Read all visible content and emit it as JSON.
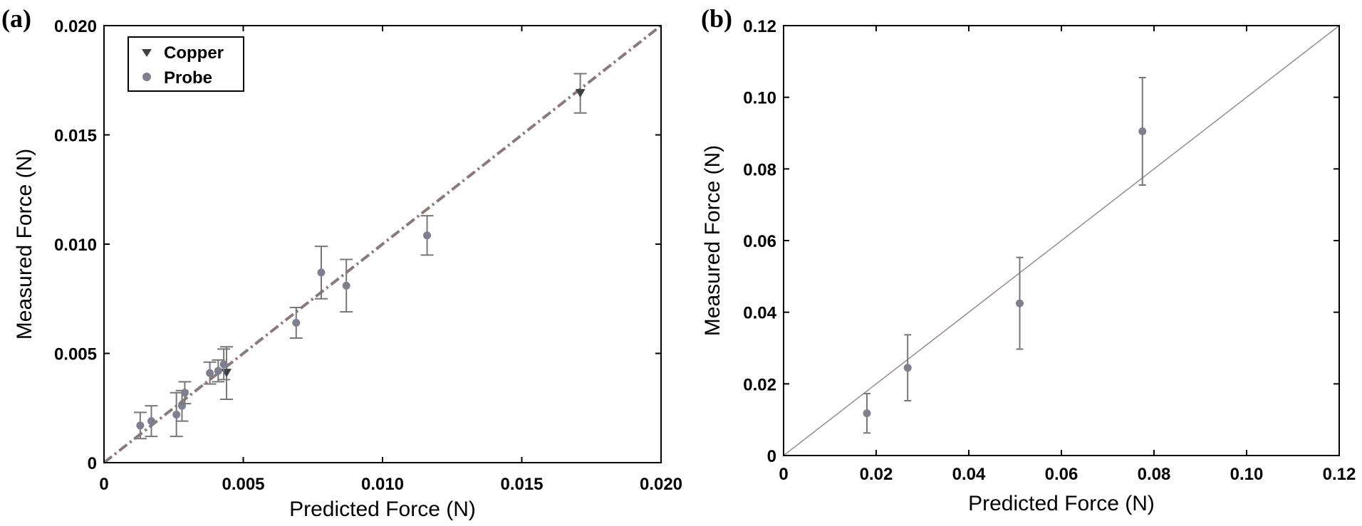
{
  "colors": {
    "probe": "#7e8090",
    "copper": "#3d4046",
    "fit_line_a": "#8c7a7a",
    "fit_line_b": "#9a8a8e",
    "error_bar": "#777777",
    "axis": "#000000"
  },
  "chart_data": [
    {
      "panel_label": "(a)",
      "type": "scatter",
      "title": "",
      "xlabel": "Predicted Force (N)",
      "ylabel": "Measured Force (N)",
      "xlim": [
        0,
        0.02
      ],
      "ylim": [
        0,
        0.02
      ],
      "xticks": [
        0,
        0.005,
        0.01,
        0.015,
        0.02
      ],
      "yticks": [
        0,
        0.005,
        0.01,
        0.015,
        0.02
      ],
      "xtick_labels": [
        "0",
        "0.005",
        "0.010",
        "0.015",
        "0.020"
      ],
      "ytick_labels": [
        "0",
        "0.005",
        "0.010",
        "0.015",
        "0.020"
      ],
      "grid": false,
      "legend": {
        "position": "top-left",
        "entries": [
          {
            "name": "Copper",
            "marker": "triangle-down"
          },
          {
            "name": "Probe",
            "marker": "circle"
          }
        ]
      },
      "reference_line": {
        "style": "dash-dot",
        "from": [
          0,
          0
        ],
        "to": [
          0.02,
          0.02
        ]
      },
      "series": [
        {
          "name": "Copper",
          "marker": "triangle-down",
          "points": [
            {
              "x": 0.0171,
              "y": 0.0169,
              "err_low": 0.0009,
              "err_high": 0.0009
            },
            {
              "x": 0.0044,
              "y": 0.0041,
              "err_low": 0.0012,
              "err_high": 0.0012
            }
          ]
        },
        {
          "name": "Probe",
          "marker": "circle",
          "points": [
            {
              "x": 0.0013,
              "y": 0.0017,
              "err_low": 0.0006,
              "err_high": 0.0006
            },
            {
              "x": 0.0017,
              "y": 0.0019,
              "err_low": 0.0007,
              "err_high": 0.0007
            },
            {
              "x": 0.0026,
              "y": 0.0022,
              "err_low": 0.001,
              "err_high": 0.001
            },
            {
              "x": 0.0028,
              "y": 0.0026,
              "err_low": 0.0007,
              "err_high": 0.0007
            },
            {
              "x": 0.0029,
              "y": 0.0032,
              "err_low": 0.0005,
              "err_high": 0.0005
            },
            {
              "x": 0.0038,
              "y": 0.0041,
              "err_low": 0.0005,
              "err_high": 0.0005
            },
            {
              "x": 0.0041,
              "y": 0.0042,
              "err_low": 0.0005,
              "err_high": 0.0005
            },
            {
              "x": 0.0043,
              "y": 0.0045,
              "err_low": 0.0007,
              "err_high": 0.0007
            },
            {
              "x": 0.0069,
              "y": 0.0064,
              "err_low": 0.0007,
              "err_high": 0.0007
            },
            {
              "x": 0.0078,
              "y": 0.0087,
              "err_low": 0.0012,
              "err_high": 0.0012
            },
            {
              "x": 0.0087,
              "y": 0.0081,
              "err_low": 0.0012,
              "err_high": 0.0012
            },
            {
              "x": 0.0116,
              "y": 0.0104,
              "err_low": 0.0009,
              "err_high": 0.0009
            }
          ]
        }
      ]
    },
    {
      "panel_label": "(b)",
      "type": "scatter",
      "title": "",
      "xlabel": "Predicted Force (N)",
      "ylabel": "Measured Force (N)",
      "xlim": [
        0,
        0.12
      ],
      "ylim": [
        0,
        0.12
      ],
      "xticks": [
        0,
        0.02,
        0.04,
        0.06,
        0.08,
        0.1,
        0.12
      ],
      "yticks": [
        0,
        0.02,
        0.04,
        0.06,
        0.08,
        0.1,
        0.12
      ],
      "xtick_labels": [
        "0",
        "0.02",
        "0.04",
        "0.06",
        "0.08",
        "0.10",
        "0.12"
      ],
      "ytick_labels": [
        "0",
        "0.02",
        "0.04",
        "0.06",
        "0.08",
        "0.10",
        "0.12"
      ],
      "grid": false,
      "legend": null,
      "reference_line": {
        "style": "solid",
        "from": [
          0,
          0
        ],
        "to": [
          0.12,
          0.12
        ]
      },
      "series": [
        {
          "name": "Probe",
          "marker": "circle",
          "points": [
            {
              "x": 0.018,
              "y": 0.0118,
              "err_low": 0.0055,
              "err_high": 0.0055
            },
            {
              "x": 0.0268,
              "y": 0.0245,
              "err_low": 0.0092,
              "err_high": 0.0092
            },
            {
              "x": 0.051,
              "y": 0.0425,
              "err_low": 0.0128,
              "err_high": 0.0128
            },
            {
              "x": 0.0775,
              "y": 0.0905,
              "err_low": 0.015,
              "err_high": 0.015
            }
          ]
        }
      ]
    }
  ]
}
